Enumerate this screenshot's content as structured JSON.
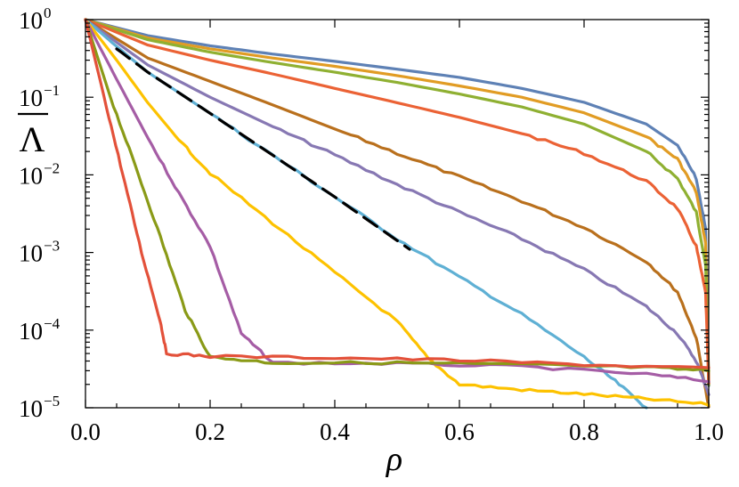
{
  "chart_data": {
    "type": "line",
    "title": "",
    "xlabel": "ρ",
    "ylabel": "Λ",
    "ylabel_overline": true,
    "x_scale": "linear",
    "y_scale": "log",
    "xlim": [
      0.0,
      1.0
    ],
    "ylim": [
      1e-05,
      1
    ],
    "x_ticks": [
      {
        "value": 0.0,
        "label": "0.0"
      },
      {
        "value": 0.2,
        "label": "0.2"
      },
      {
        "value": 0.4,
        "label": "0.4"
      },
      {
        "value": 0.6,
        "label": "0.6"
      },
      {
        "value": 0.8,
        "label": "0.8"
      },
      {
        "value": 1.0,
        "label": "1.0"
      }
    ],
    "y_ticks": [
      {
        "value": 1,
        "base": "10",
        "exp": "0"
      },
      {
        "value": 0.1,
        "base": "10",
        "exp": "−1"
      },
      {
        "value": 0.01,
        "base": "10",
        "exp": "−2"
      },
      {
        "value": 0.001,
        "base": "10",
        "exp": "−3"
      },
      {
        "value": 0.0001,
        "base": "10",
        "exp": "−4"
      },
      {
        "value": 1e-05,
        "base": "10",
        "exp": "−5"
      }
    ],
    "grid": false,
    "legend": "none",
    "series": [
      {
        "color": "#5e81b5",
        "style": "solid",
        "points": [
          [
            0,
            1
          ],
          [
            0.1,
            0.62
          ],
          [
            0.2,
            0.46
          ],
          [
            0.3,
            0.36
          ],
          [
            0.4,
            0.29
          ],
          [
            0.5,
            0.23
          ],
          [
            0.6,
            0.18
          ],
          [
            0.7,
            0.13
          ],
          [
            0.8,
            0.086
          ],
          [
            0.9,
            0.045
          ],
          [
            0.95,
            0.024
          ],
          [
            0.98,
            0.009
          ],
          [
            0.995,
            0.002
          ],
          [
            1.0,
            2e-05
          ]
        ]
      },
      {
        "color": "#e19c24",
        "style": "solid",
        "points": [
          [
            0,
            1
          ],
          [
            0.1,
            0.58
          ],
          [
            0.2,
            0.42
          ],
          [
            0.3,
            0.32
          ],
          [
            0.4,
            0.25
          ],
          [
            0.5,
            0.19
          ],
          [
            0.6,
            0.14
          ],
          [
            0.7,
            0.1
          ],
          [
            0.8,
            0.063
          ],
          [
            0.9,
            0.031
          ],
          [
            0.95,
            0.016
          ],
          [
            0.98,
            0.006
          ],
          [
            0.995,
            0.0013
          ],
          [
            1.0,
            2e-05
          ]
        ]
      },
      {
        "color": "#8fb032",
        "style": "solid",
        "points": [
          [
            0,
            1
          ],
          [
            0.1,
            0.55
          ],
          [
            0.2,
            0.38
          ],
          [
            0.3,
            0.28
          ],
          [
            0.4,
            0.21
          ],
          [
            0.5,
            0.155
          ],
          [
            0.6,
            0.11
          ],
          [
            0.7,
            0.075
          ],
          [
            0.8,
            0.045
          ],
          [
            0.9,
            0.02
          ],
          [
            0.95,
            0.009
          ],
          [
            0.98,
            0.0033
          ],
          [
            0.995,
            0.0007
          ],
          [
            1.0,
            2e-05
          ]
        ]
      },
      {
        "color": "#eb6235",
        "style": "solid",
        "points": [
          [
            0,
            1
          ],
          [
            0.1,
            0.47
          ],
          [
            0.2,
            0.3
          ],
          [
            0.3,
            0.2
          ],
          [
            0.4,
            0.13
          ],
          [
            0.5,
            0.085
          ],
          [
            0.6,
            0.055
          ],
          [
            0.7,
            0.034
          ],
          [
            0.8,
            0.019
          ],
          [
            0.9,
            0.0083
          ],
          [
            0.95,
            0.0037
          ],
          [
            0.98,
            0.0012
          ],
          [
            0.995,
            0.0003
          ],
          [
            1.0,
            2e-05
          ]
        ]
      },
      {
        "color": "#b9701d",
        "style": "solid",
        "points": [
          [
            0,
            1
          ],
          [
            0.1,
            0.32
          ],
          [
            0.2,
            0.16
          ],
          [
            0.3,
            0.08
          ],
          [
            0.4,
            0.039
          ],
          [
            0.5,
            0.019
          ],
          [
            0.6,
            0.0094
          ],
          [
            0.7,
            0.0046
          ],
          [
            0.8,
            0.0021
          ],
          [
            0.9,
            0.00077
          ],
          [
            0.95,
            0.00031
          ],
          [
            0.98,
            8e-05
          ],
          [
            1.0,
            1e-05
          ]
        ]
      },
      {
        "color": "#8778b3",
        "style": "solid",
        "points": [
          [
            0,
            1
          ],
          [
            0.1,
            0.26
          ],
          [
            0.2,
            0.1
          ],
          [
            0.3,
            0.042
          ],
          [
            0.4,
            0.018
          ],
          [
            0.5,
            0.0075
          ],
          [
            0.6,
            0.0033
          ],
          [
            0.7,
            0.0015
          ],
          [
            0.8,
            0.0006
          ],
          [
            0.9,
            0.0002
          ],
          [
            0.95,
            9e-05
          ],
          [
            0.98,
            4e-05
          ],
          [
            1.0,
            1.5e-05
          ]
        ]
      },
      {
        "color": "#5fb0d4",
        "style": "solid",
        "points": [
          [
            0,
            1
          ],
          [
            0.05,
            0.45
          ],
          [
            0.1,
            0.21
          ],
          [
            0.2,
            0.062
          ],
          [
            0.3,
            0.018
          ],
          [
            0.4,
            0.0052
          ],
          [
            0.5,
            0.0015
          ],
          [
            0.6,
            0.00048
          ],
          [
            0.7,
            0.00016
          ],
          [
            0.8,
            4.5e-05
          ],
          [
            0.85,
            2.2e-05
          ],
          [
            0.9,
            1e-05
          ]
        ]
      },
      {
        "color": "#000000",
        "style": "dashed",
        "points": [
          [
            0.05,
            0.42
          ],
          [
            0.1,
            0.21
          ],
          [
            0.2,
            0.062
          ],
          [
            0.3,
            0.018
          ],
          [
            0.4,
            0.0052
          ],
          [
            0.52,
            0.0011
          ]
        ]
      },
      {
        "color": "#fdc200",
        "style": "solid",
        "points": [
          [
            0,
            1
          ],
          [
            0.05,
            0.3
          ],
          [
            0.1,
            0.085
          ],
          [
            0.15,
            0.028
          ],
          [
            0.2,
            0.0105
          ],
          [
            0.3,
            0.0024
          ],
          [
            0.4,
            0.00055
          ],
          [
            0.5,
            0.00013
          ],
          [
            0.55,
            4.3e-05
          ],
          [
            0.6,
            2e-05
          ],
          [
            0.7,
            1.7e-05
          ],
          [
            0.8,
            1.5e-05
          ],
          [
            0.9,
            1.3e-05
          ],
          [
            1.0,
            1.1e-05
          ]
        ]
      },
      {
        "color": "#a55da5",
        "style": "solid",
        "points": [
          [
            0,
            1
          ],
          [
            0.05,
            0.17
          ],
          [
            0.1,
            0.03
          ],
          [
            0.15,
            0.0058
          ],
          [
            0.2,
            0.0012
          ],
          [
            0.25,
            9e-05
          ],
          [
            0.3,
            3.8e-05
          ],
          [
            0.5,
            3.7e-05
          ],
          [
            0.7,
            3.4e-05
          ],
          [
            0.9,
            2.7e-05
          ],
          [
            1.0,
            2.2e-05
          ]
        ]
      },
      {
        "color": "#8a9a17",
        "style": "solid",
        "points": [
          [
            0,
            1
          ],
          [
            0.04,
            0.1
          ],
          [
            0.08,
            0.013
          ],
          [
            0.12,
            0.0016
          ],
          [
            0.16,
            0.00018
          ],
          [
            0.2,
            4.5e-05
          ],
          [
            0.3,
            3.8e-05
          ],
          [
            0.5,
            3.8e-05
          ],
          [
            0.7,
            3.6e-05
          ],
          [
            0.9,
            3.3e-05
          ],
          [
            1.0,
            3e-05
          ]
        ]
      },
      {
        "color": "#e3513a",
        "style": "solid",
        "points": [
          [
            0,
            1
          ],
          [
            0.03,
            0.1
          ],
          [
            0.06,
            0.01
          ],
          [
            0.09,
            0.001
          ],
          [
            0.12,
            0.00013
          ],
          [
            0.13,
            5e-05
          ],
          [
            0.2,
            4.6e-05
          ],
          [
            0.4,
            4.4e-05
          ],
          [
            0.6,
            4.1e-05
          ],
          [
            0.8,
            3.6e-05
          ],
          [
            1.0,
            3.2e-05
          ]
        ]
      }
    ]
  }
}
